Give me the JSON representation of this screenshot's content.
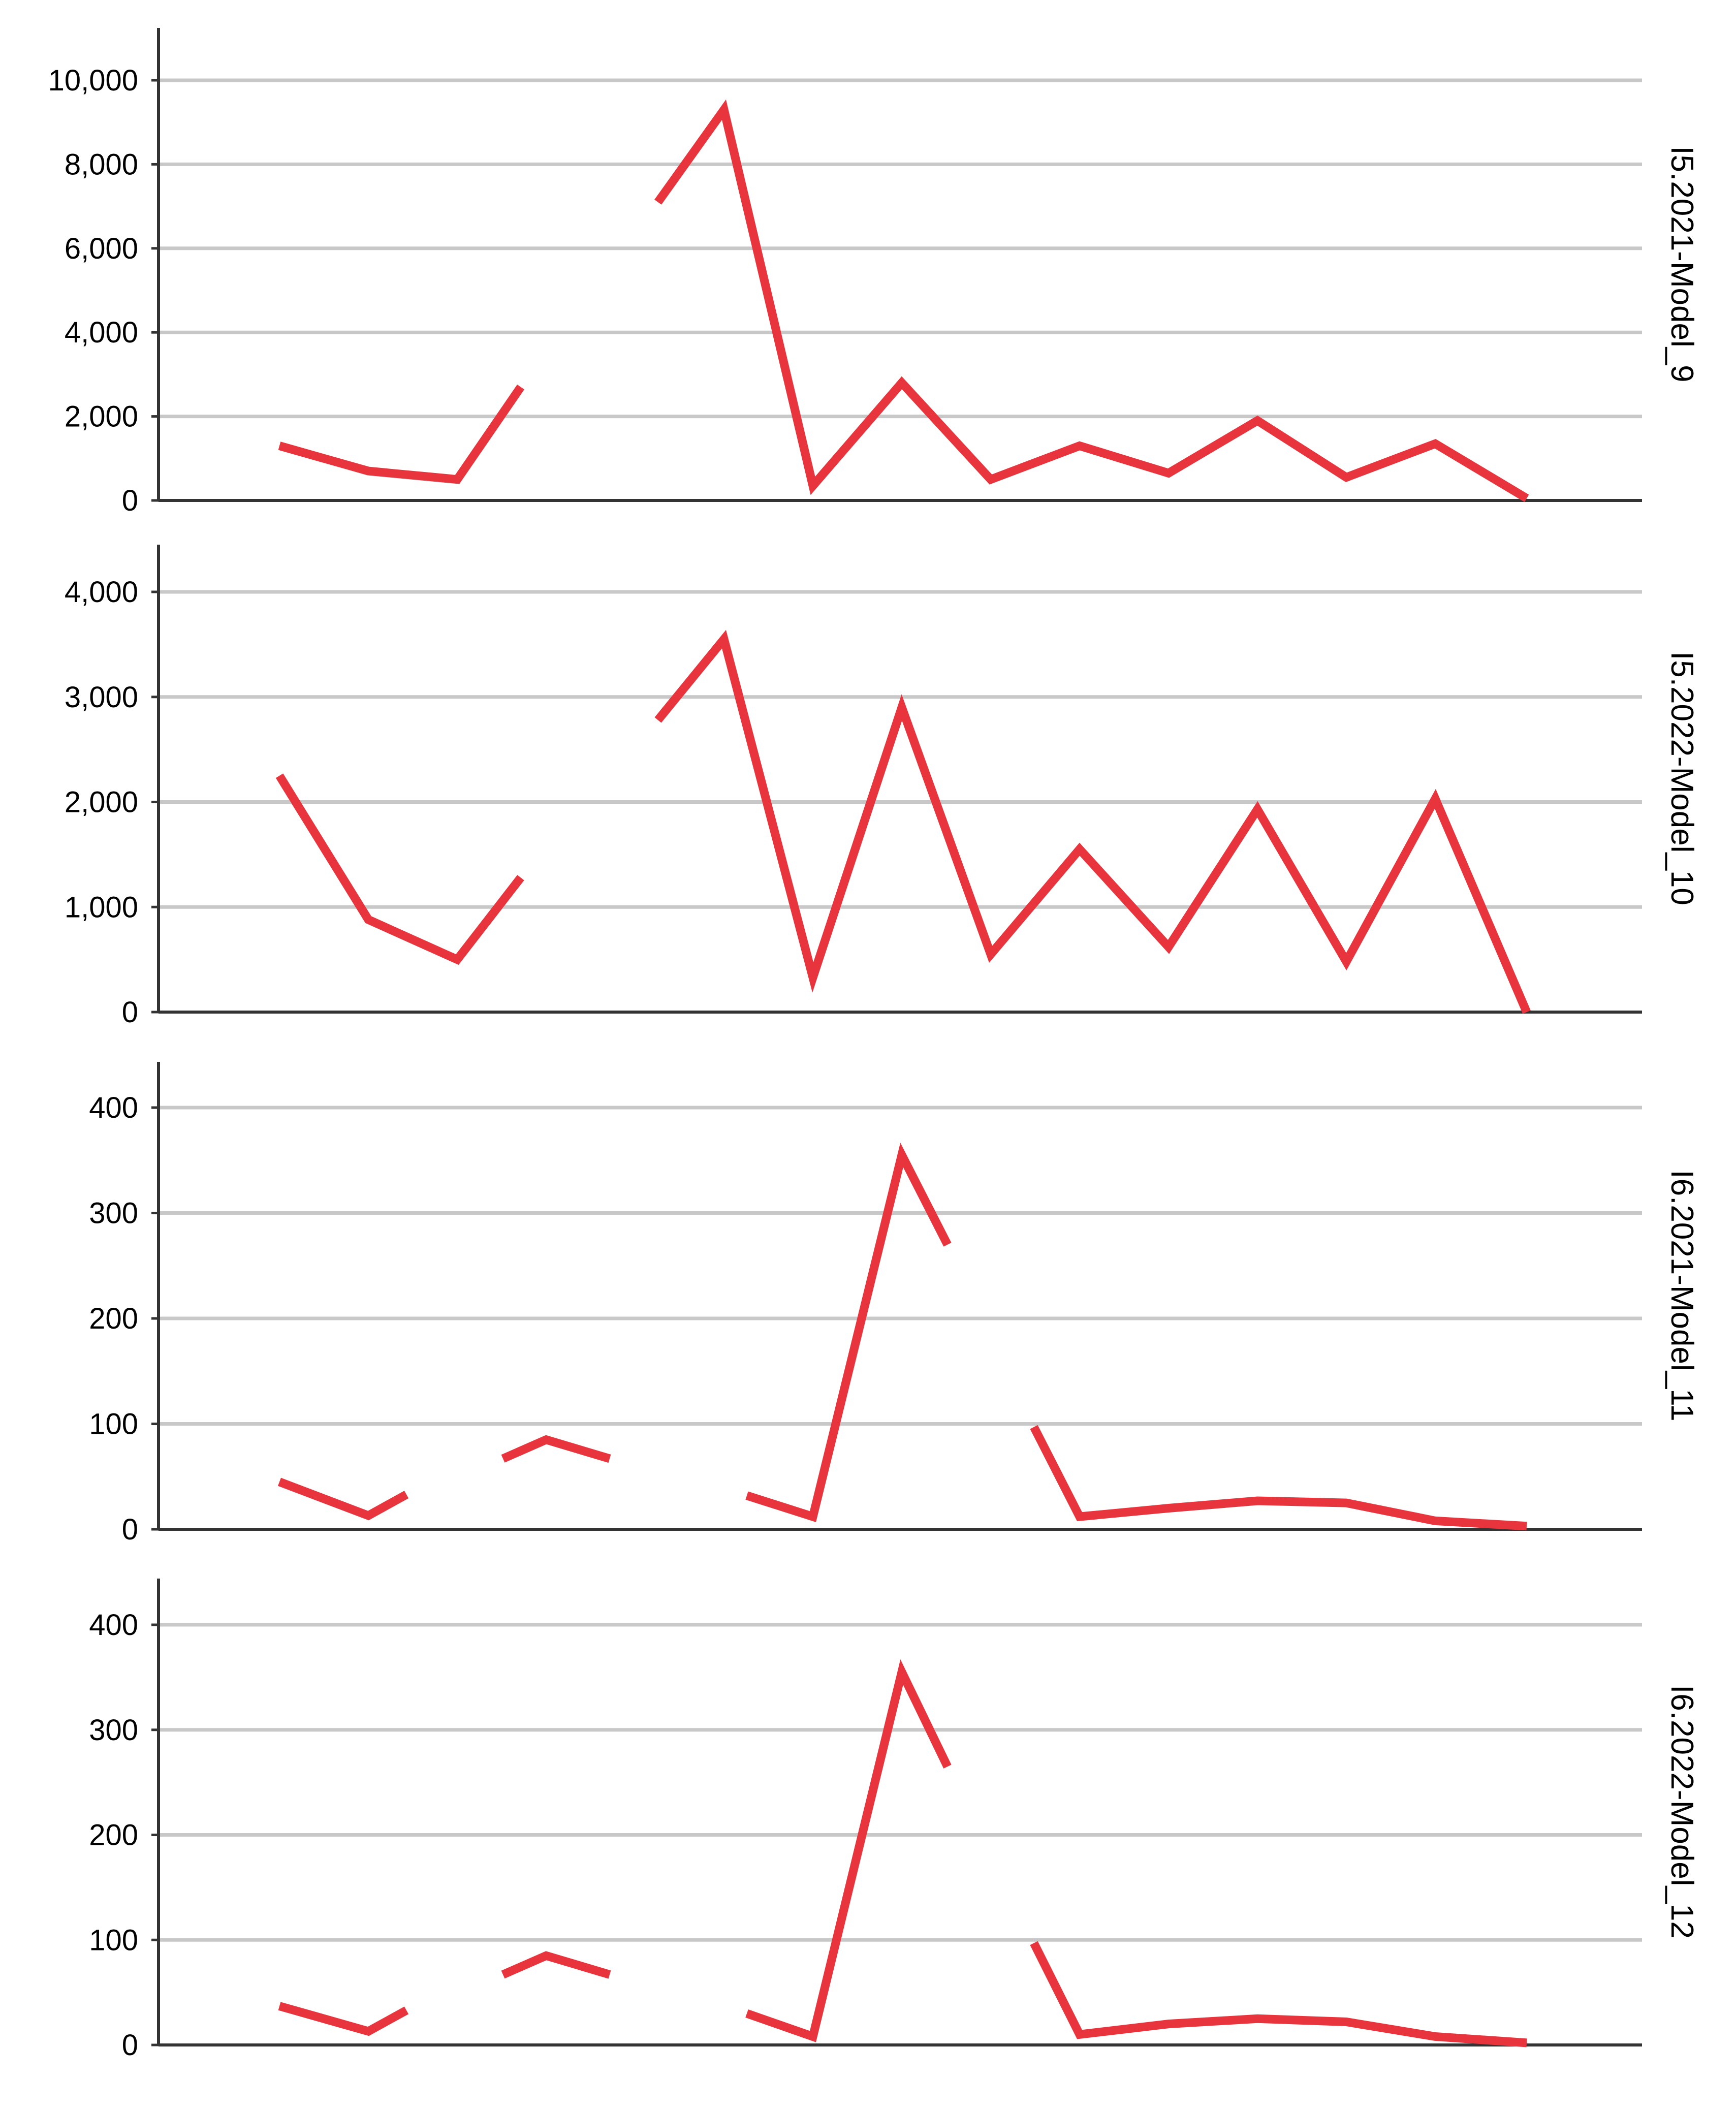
{
  "colors": {
    "line": "#e8343c",
    "grid": "#c8c8c8",
    "axis": "#333333",
    "text": "#000000",
    "background": "#ffffff"
  },
  "chart_data": [
    {
      "type": "line",
      "panel_label": "I5.2021-Model_9",
      "ylim": [
        0,
        10000
      ],
      "yticks": [
        0,
        2000,
        4000,
        6000,
        8000,
        10000
      ],
      "ytick_labels": [
        "0",
        "2,000",
        "4,000",
        "6,000",
        "8,000",
        "10,000"
      ],
      "grid": true,
      "series": [
        {
          "values": [
            1300,
            700,
            500,
            2700,
            null,
            7100,
            9300,
            350,
            2800,
            500,
            1300,
            650,
            1900,
            550,
            1350,
            50
          ]
        }
      ]
    },
    {
      "type": "line",
      "panel_label": "I5.2022-Model_10",
      "ylim": [
        0,
        4000
      ],
      "yticks": [
        0,
        1000,
        2000,
        3000,
        4000
      ],
      "ytick_labels": [
        "0",
        "1,000",
        "2,000",
        "3,000",
        "4,000"
      ],
      "grid": true,
      "series": [
        {
          "values": [
            2250,
            880,
            500,
            1280,
            null,
            2780,
            3550,
            330,
            2900,
            550,
            1550,
            620,
            1930,
            480,
            2030,
            0
          ]
        }
      ]
    },
    {
      "type": "line",
      "panel_label": "I6.2021-Model_11",
      "ylim": [
        0,
        400
      ],
      "yticks": [
        0,
        100,
        200,
        300,
        400
      ],
      "ytick_labels": [
        "0",
        "100",
        "200",
        "300",
        "400"
      ],
      "grid": true,
      "series": [
        {
          "values": [
            45,
            13,
            33,
            null,
            67,
            85,
            67,
            null,
            32,
            12,
            355,
            270,
            null,
            97,
            12,
            20,
            27,
            25,
            8,
            3
          ]
        }
      ]
    },
    {
      "type": "line",
      "panel_label": "I6.2022-Model_12",
      "ylim": [
        0,
        400
      ],
      "yticks": [
        0,
        100,
        200,
        300,
        400
      ],
      "ytick_labels": [
        "0",
        "100",
        "200",
        "300",
        "400"
      ],
      "grid": true,
      "series": [
        {
          "values": [
            37,
            13,
            33,
            null,
            67,
            85,
            67,
            null,
            30,
            8,
            355,
            265,
            null,
            97,
            10,
            20,
            25,
            22,
            8,
            2
          ]
        }
      ]
    }
  ]
}
